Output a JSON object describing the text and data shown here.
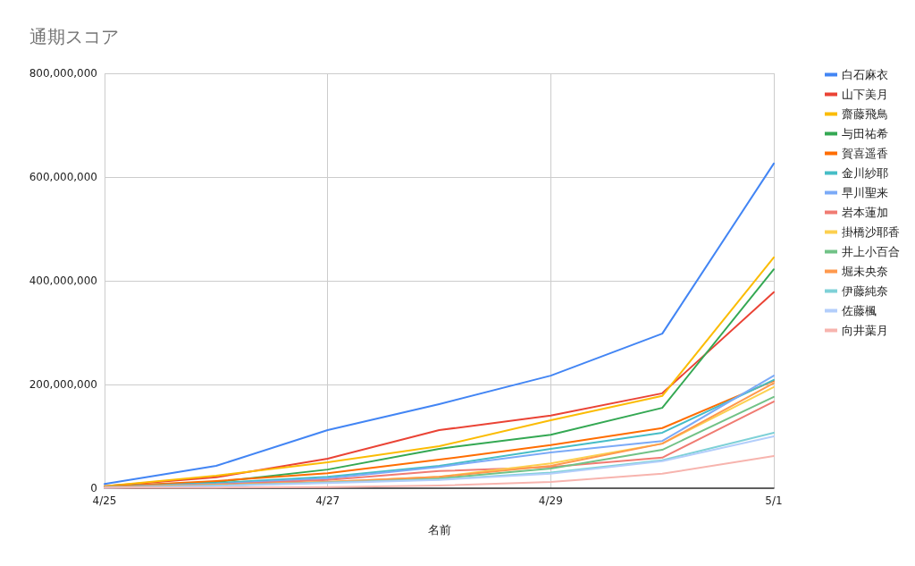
{
  "chart_data": {
    "type": "line",
    "title": "通期スコア",
    "xlabel": "名前",
    "categories": [
      "4/25",
      null,
      "4/27",
      null,
      "4/29",
      null,
      "5/1"
    ],
    "ylim": [
      0,
      800000000
    ],
    "yticks": [
      {
        "value": 0,
        "label": "0"
      },
      {
        "value": 200000000,
        "label": "200,000,000"
      },
      {
        "value": 400000000,
        "label": "400,000,000"
      },
      {
        "value": 600000000,
        "label": "600,000,000"
      },
      {
        "value": 800000000,
        "label": "800,000,000"
      }
    ],
    "grid": true,
    "legend": "right",
    "marker": "none",
    "line_style": "solid",
    "series": [
      {
        "name": "白石麻衣",
        "color": "#4285f4",
        "values": [
          8000000,
          43000000,
          112000000,
          162000000,
          217000000,
          298000000,
          626000000
        ]
      },
      {
        "name": "山下美月",
        "color": "#ea4335",
        "values": [
          4000000,
          21000000,
          57000000,
          112000000,
          140000000,
          183000000,
          378000000
        ]
      },
      {
        "name": "齋藤飛鳥",
        "color": "#fbbc04",
        "values": [
          4000000,
          24000000,
          50000000,
          81000000,
          131000000,
          178000000,
          445000000
        ]
      },
      {
        "name": "与田祐希",
        "color": "#34a853",
        "values": [
          3000000,
          12000000,
          36000000,
          76000000,
          103000000,
          155000000,
          422000000
        ]
      },
      {
        "name": "賀喜遥香",
        "color": "#ff6d01",
        "values": [
          3000000,
          14000000,
          29000000,
          55000000,
          83000000,
          116000000,
          207000000
        ]
      },
      {
        "name": "金川紗耶",
        "color": "#46bdc6",
        "values": [
          2000000,
          10000000,
          22000000,
          43000000,
          76000000,
          107000000,
          209000000
        ]
      },
      {
        "name": "早川聖来",
        "color": "#7baaf7",
        "values": [
          2000000,
          8000000,
          19000000,
          41000000,
          69000000,
          91000000,
          217000000
        ]
      },
      {
        "name": "岩本蓮加",
        "color": "#f07b72",
        "values": [
          2000000,
          7000000,
          16000000,
          33000000,
          41000000,
          59000000,
          167000000
        ]
      },
      {
        "name": "掛橋沙耶香",
        "color": "#fcd04f",
        "values": [
          2000000,
          6000000,
          12000000,
          22000000,
          48000000,
          86000000,
          195000000
        ]
      },
      {
        "name": "井上小百合",
        "color": "#71c287",
        "values": [
          2000000,
          5000000,
          11000000,
          19000000,
          38000000,
          74000000,
          176000000
        ]
      },
      {
        "name": "堀未央奈",
        "color": "#ff994d",
        "values": [
          2000000,
          6000000,
          12000000,
          22000000,
          43000000,
          86000000,
          203000000
        ]
      },
      {
        "name": "伊藤純奈",
        "color": "#7ed1d7",
        "values": [
          1000000,
          5000000,
          11000000,
          17000000,
          30000000,
          54000000,
          107000000
        ]
      },
      {
        "name": "佐藤楓",
        "color": "#b3cefb",
        "values": [
          1000000,
          4000000,
          10000000,
          16000000,
          28000000,
          52000000,
          100000000
        ]
      },
      {
        "name": "向井葉月",
        "color": "#f7b4ae",
        "values": [
          1000000,
          1000000,
          2000000,
          5000000,
          12000000,
          28000000,
          62000000
        ]
      }
    ]
  }
}
